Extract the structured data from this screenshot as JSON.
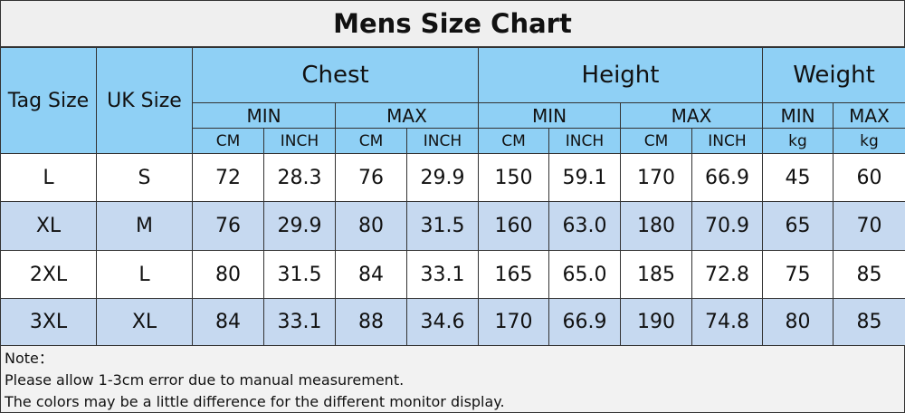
{
  "title": "Mens Size Chart",
  "header": {
    "tag_size": "Tag Size",
    "uk_size": "UK Size",
    "groups": [
      {
        "label": "Chest",
        "sub": [
          {
            "label": "MIN",
            "units": [
              "CM",
              "INCH"
            ]
          },
          {
            "label": "MAX",
            "units": [
              "CM",
              "INCH"
            ]
          }
        ]
      },
      {
        "label": "Height",
        "sub": [
          {
            "label": "MIN",
            "units": [
              "CM",
              "INCH"
            ]
          },
          {
            "label": "MAX",
            "units": [
              "CM",
              "INCH"
            ]
          }
        ]
      },
      {
        "label": "Weight",
        "sub": [
          {
            "label": "MIN",
            "units": [
              "kg"
            ]
          },
          {
            "label": "MAX",
            "units": [
              "kg"
            ]
          }
        ]
      }
    ]
  },
  "rows": [
    [
      "L",
      "S",
      "72",
      "28.3",
      "76",
      "29.9",
      "150",
      "59.1",
      "170",
      "66.9",
      "45",
      "60"
    ],
    [
      "XL",
      "M",
      "76",
      "29.9",
      "80",
      "31.5",
      "160",
      "63.0",
      "180",
      "70.9",
      "65",
      "70"
    ],
    [
      "2XL",
      "L",
      "80",
      "31.5",
      "84",
      "33.1",
      "165",
      "65.0",
      "185",
      "72.8",
      "75",
      "85"
    ],
    [
      "3XL",
      "XL",
      "84",
      "33.1",
      "88",
      "34.6",
      "170",
      "66.9",
      "190",
      "74.8",
      "80",
      "85"
    ]
  ],
  "note": {
    "label": "Note：",
    "lines": [
      "Please allow 1-3cm error due to manual measurement.",
      "The colors may be a little difference for the different monitor display."
    ]
  }
}
